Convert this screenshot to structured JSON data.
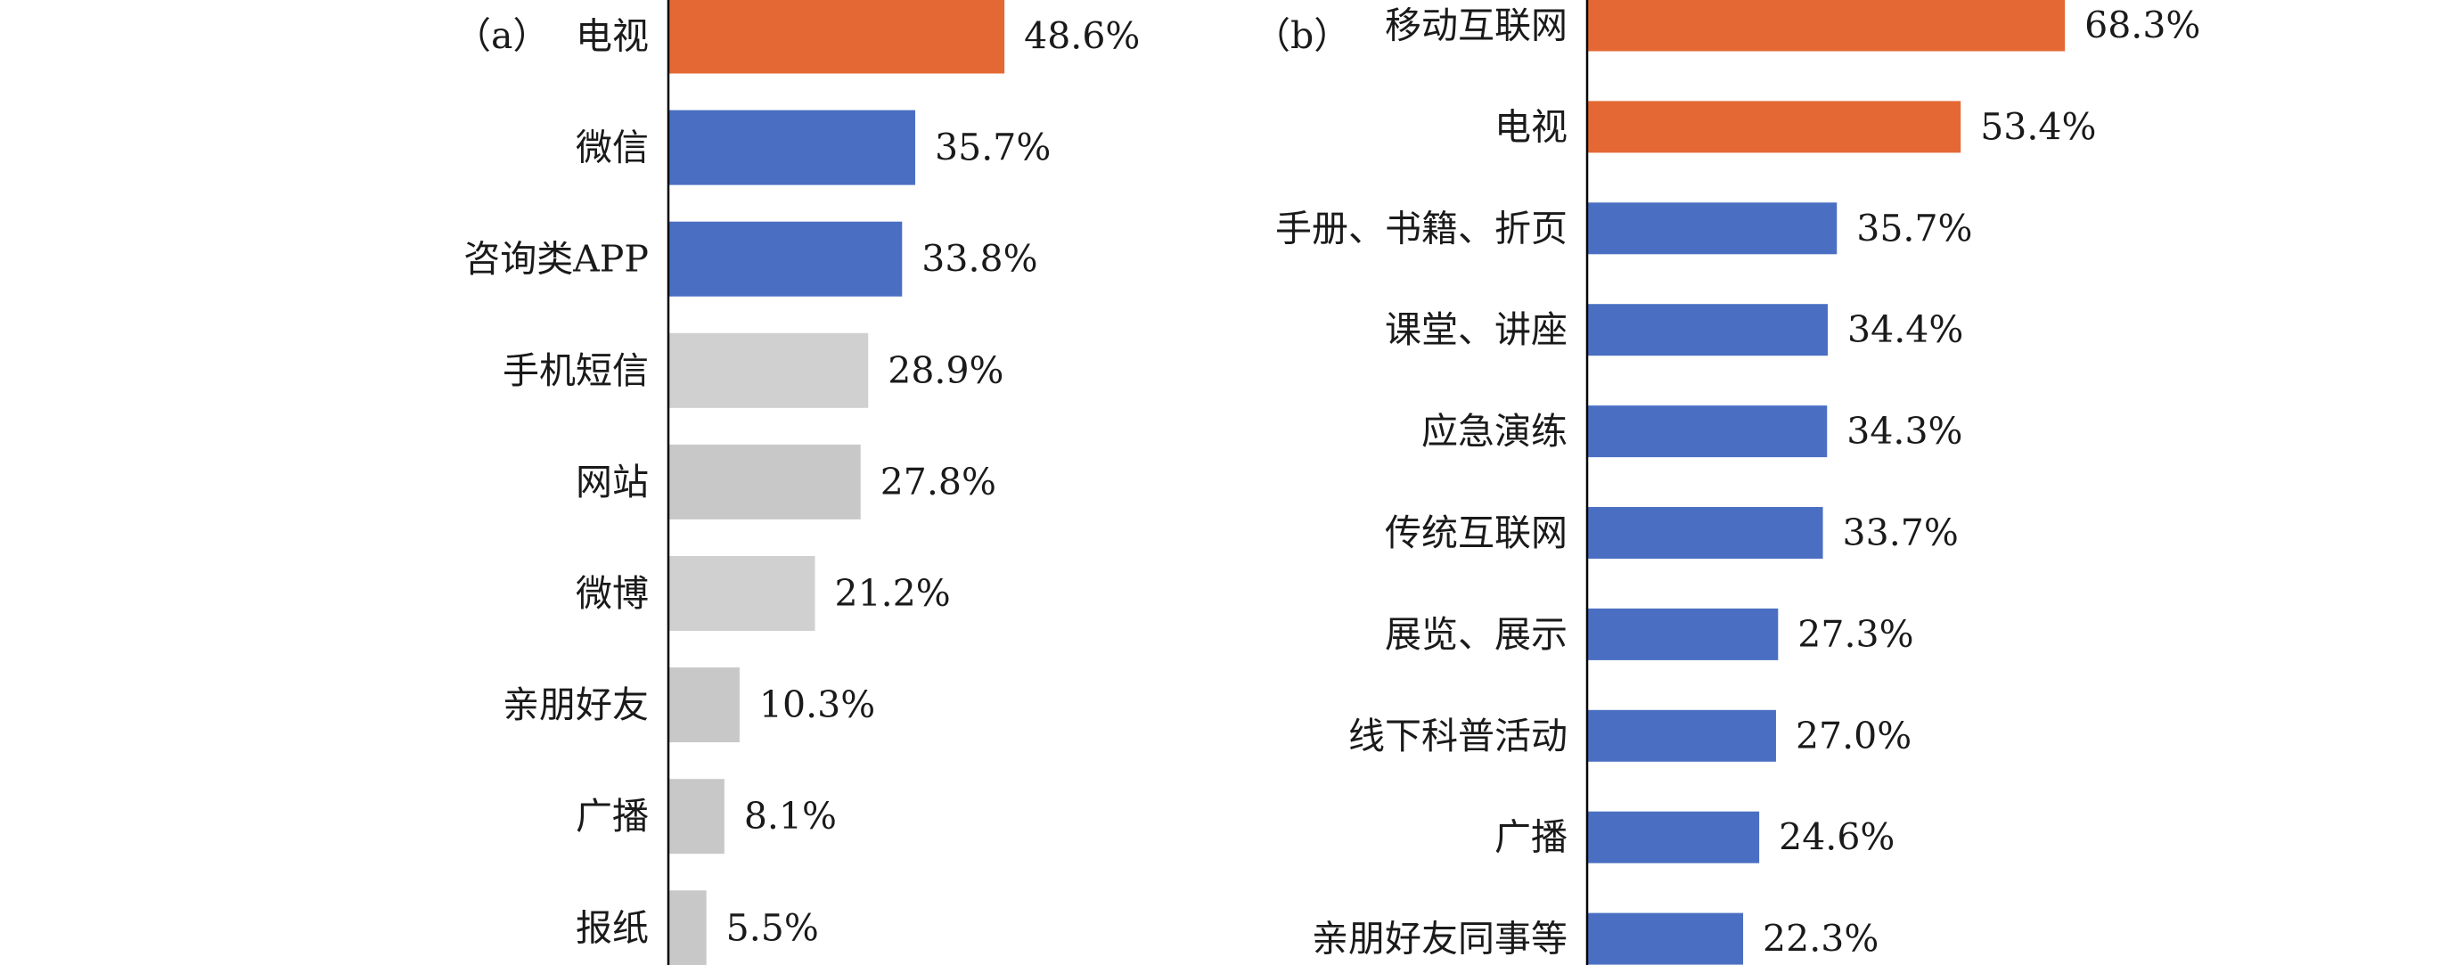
{
  "chart_data": [
    {
      "type": "bar",
      "orientation": "horizontal",
      "panel_label": "（a）",
      "categories": [
        "电视",
        "微信",
        "咨询类APP",
        "手机短信",
        "网站",
        "微博",
        "亲朋好友",
        "广播",
        "报纸"
      ],
      "values": [
        48.6,
        35.7,
        33.8,
        28.9,
        27.8,
        21.2,
        10.3,
        8.1,
        5.5
      ],
      "value_labels": [
        "48.6%",
        "35.7%",
        "33.8%",
        "28.9%",
        "27.8%",
        "21.2%",
        "10.3%",
        "8.1%",
        "5.5%"
      ],
      "bar_colors": [
        "#e46834",
        "#4a6fc2",
        "#4a6fc2",
        "#d0d0d0",
        "#c8c8c8",
        "#d0d0d0",
        "#c8c8c8",
        "#c8c8c8",
        "#c8c8c8"
      ],
      "xlim": [
        0,
        100
      ],
      "grid": false
    },
    {
      "type": "bar",
      "orientation": "horizontal",
      "panel_label": "（b）",
      "categories": [
        "移动互联网",
        "电视",
        "手册、书籍、折页",
        "课堂、讲座",
        "应急演练",
        "传统互联网",
        "展览、展示",
        "线下科普活动",
        "广播",
        "亲朋好友同事等"
      ],
      "values": [
        68.3,
        53.4,
        35.7,
        34.4,
        34.3,
        33.7,
        27.3,
        27.0,
        24.6,
        22.3
      ],
      "value_labels": [
        "68.3%",
        "53.4%",
        "35.7%",
        "34.4%",
        "34.3%",
        "33.7%",
        "27.3%",
        "27.0%",
        "24.6%",
        "22.3%"
      ],
      "bar_colors": [
        "#e46834",
        "#e46834",
        "#4a6fc2",
        "#4a6fc2",
        "#4a6fc2",
        "#4a6fc2",
        "#4a6fc2",
        "#4a6fc2",
        "#4a6fc2",
        "#4a6fc2"
      ],
      "xlim": [
        0,
        100
      ],
      "grid": false
    }
  ]
}
